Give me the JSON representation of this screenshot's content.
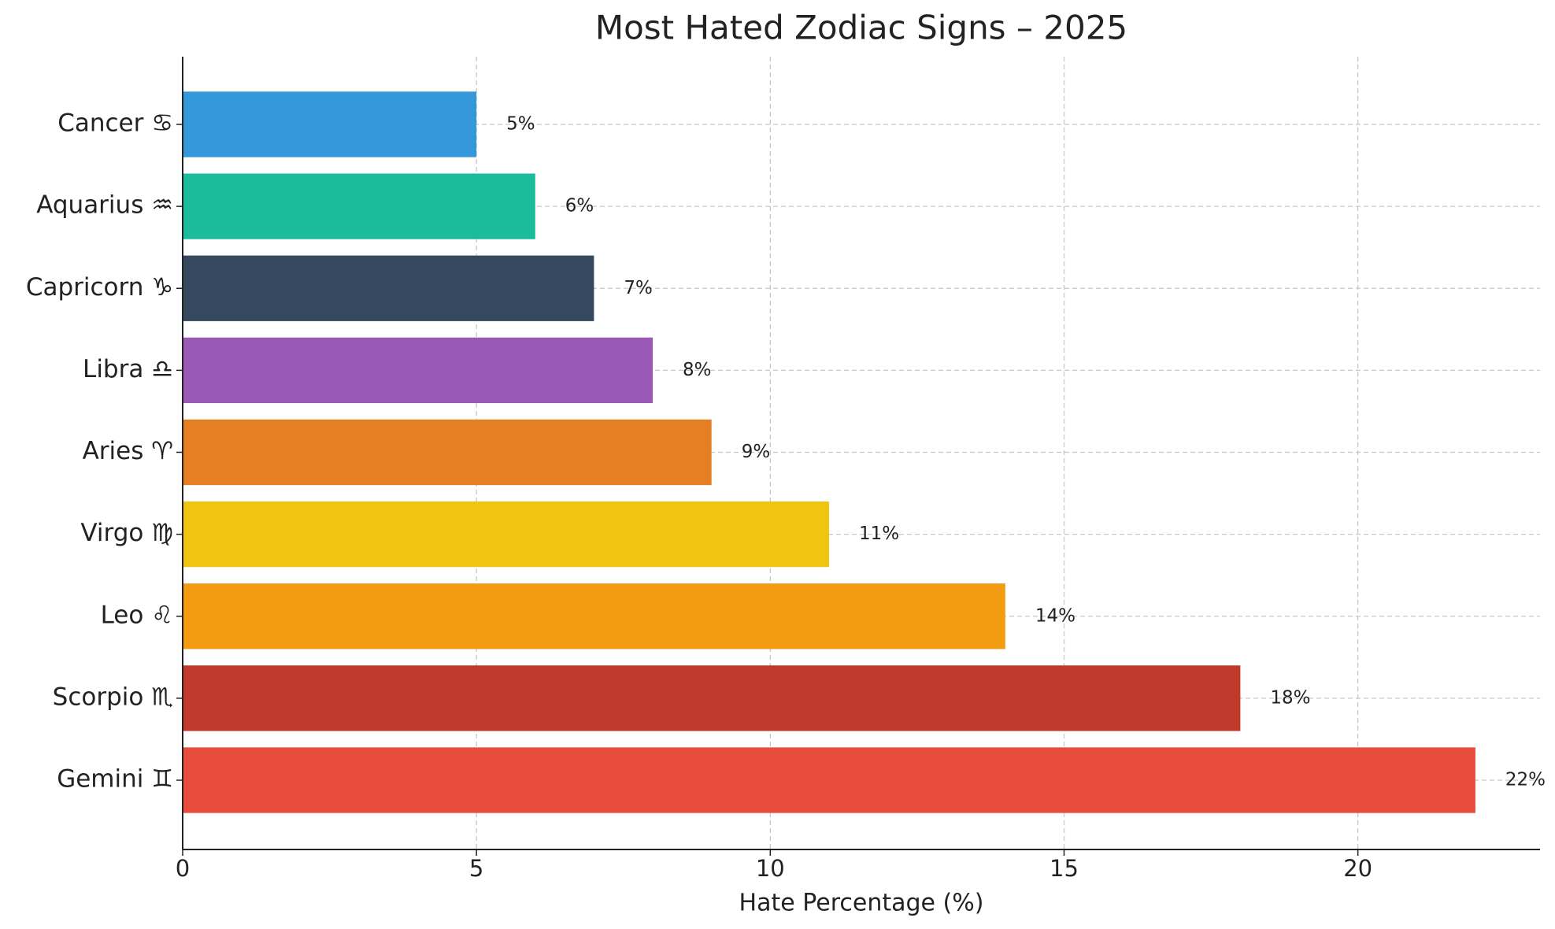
{
  "chart_data": {
    "type": "barh",
    "title": "Most Hated Zodiac Signs – 2025",
    "x_label": "Hate Percentage (%)",
    "categories": [
      "Gemini ♊",
      "Scorpio ♏",
      "Leo ♌",
      "Virgo ♍",
      "Aries ♈",
      "Libra ♎",
      "Capricorn ♑",
      "Aquarius ♒",
      "Cancer ♋"
    ],
    "values": [
      22,
      18,
      14,
      11,
      9,
      8,
      7,
      6,
      5
    ],
    "value_labels": [
      "22%",
      "18%",
      "14%",
      "11%",
      "9%",
      "8%",
      "7%",
      "6%",
      "5%"
    ],
    "colors": [
      "#e74c3c",
      "#c0392b",
      "#f39c12",
      "#f1c40f",
      "#e67e22",
      "#9b59b6",
      "#34495e",
      "#1abc9c",
      "#3498db"
    ],
    "xlim": [
      0,
      23.1
    ],
    "xticks": [
      0,
      5,
      10,
      15,
      20
    ],
    "grid": true
  }
}
